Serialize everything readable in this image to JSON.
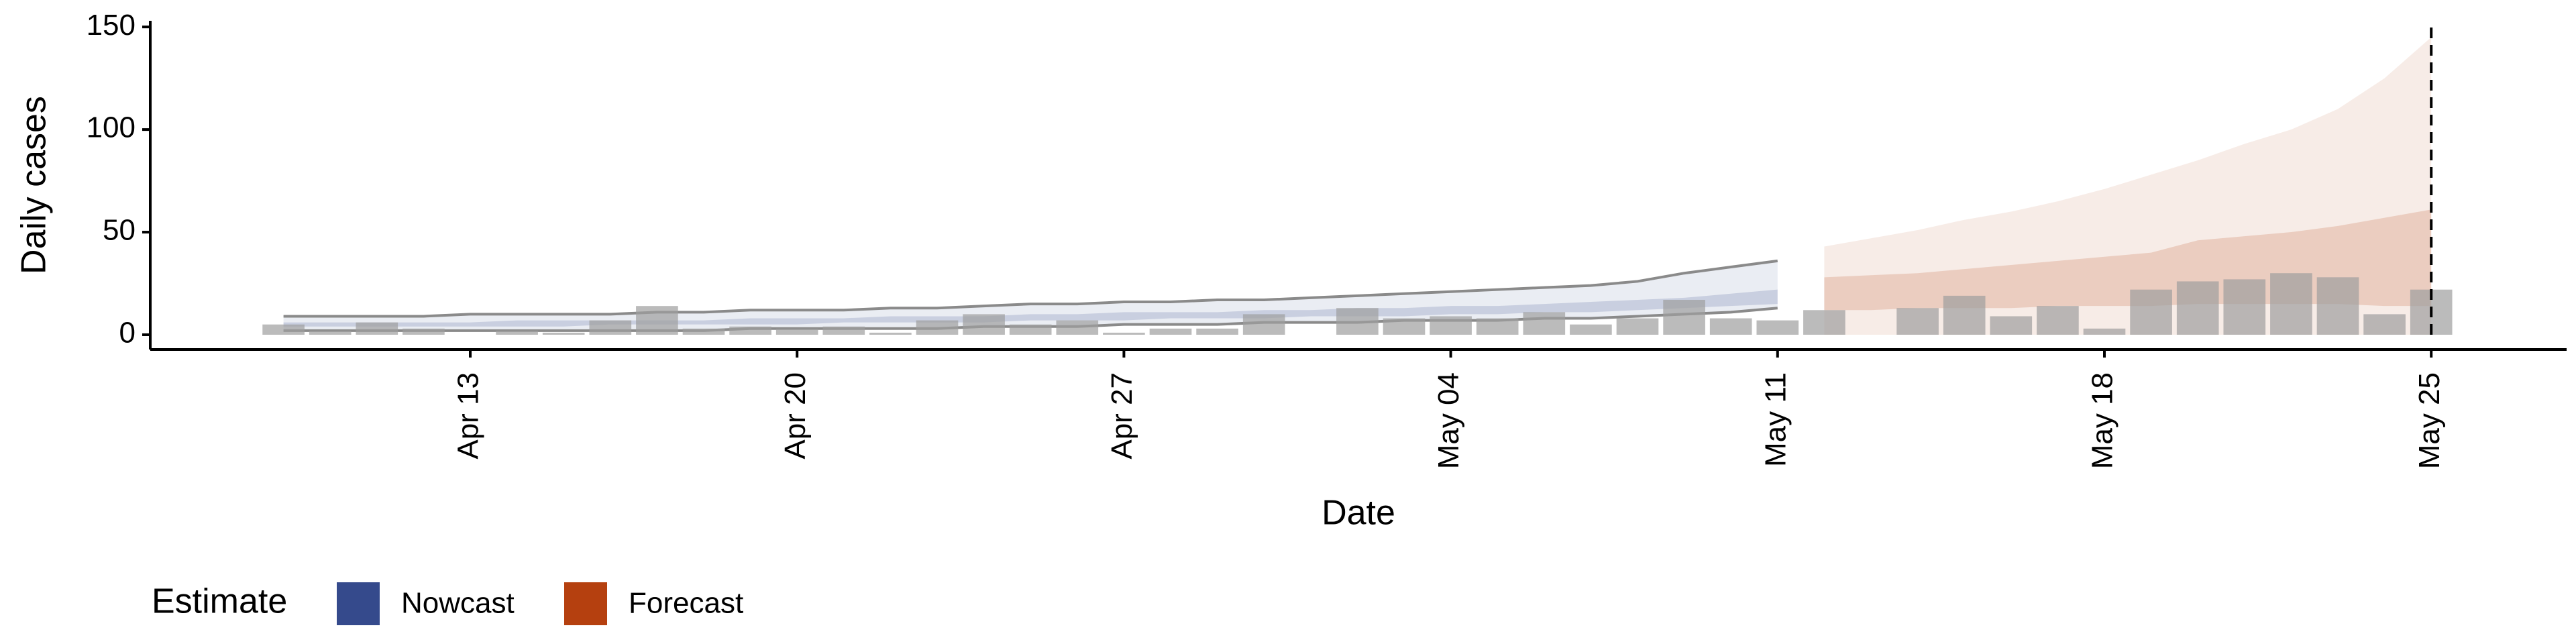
{
  "chart_data": {
    "type": "bar",
    "x_label": "Date",
    "y_label": "Daily cases",
    "categories": [
      null,
      null,
      null,
      null,
      "Apr 13",
      null,
      null,
      null,
      null,
      null,
      null,
      "Apr 20",
      null,
      null,
      null,
      null,
      null,
      null,
      "Apr 27",
      null,
      null,
      null,
      null,
      null,
      null,
      "May 04",
      null,
      null,
      null,
      null,
      null,
      null,
      "May 11",
      null,
      null,
      null,
      null,
      null,
      null,
      "May 18",
      null,
      null,
      null,
      null,
      null,
      null,
      "May 25"
    ],
    "values": [
      5,
      2,
      6,
      3,
      0,
      2,
      1,
      7,
      14,
      3,
      4,
      3,
      4,
      1,
      7,
      10,
      5,
      7,
      1,
      3,
      3,
      10,
      0,
      13,
      8,
      9,
      8,
      11,
      5,
      8,
      17,
      8,
      7,
      12,
      0,
      13,
      19,
      9,
      14,
      3,
      22,
      26,
      27,
      30,
      28,
      10,
      22
    ],
    "color": "#9e9e9e",
    "ylim": [
      -7.2,
      153
    ],
    "yticks": [
      0,
      50,
      100,
      150
    ],
    "legend_title": "Estimate",
    "estimates": [
      {
        "name": "Nowcast",
        "color": "#354a8c",
        "lower_90": [
          2,
          2,
          2,
          2,
          2,
          2,
          2,
          2,
          2,
          2,
          3,
          3,
          3,
          3,
          3,
          4,
          4,
          4,
          5,
          5,
          5,
          6,
          6,
          6,
          7,
          7,
          7,
          8,
          8,
          9,
          10,
          11,
          13,
          null,
          null,
          null,
          null,
          null,
          null,
          null,
          null,
          null,
          null,
          null,
          null,
          null,
          null
        ],
        "upper_90": [
          9,
          9,
          9,
          9,
          10,
          10,
          10,
          10,
          11,
          11,
          12,
          12,
          12,
          13,
          13,
          14,
          15,
          15,
          16,
          16,
          17,
          17,
          18,
          19,
          20,
          21,
          22,
          23,
          24,
          26,
          30,
          33,
          36,
          null,
          null,
          null,
          null,
          null,
          null,
          null,
          null,
          null,
          null,
          null,
          null,
          null,
          null
        ],
        "lower_50": [
          4,
          4,
          4,
          4,
          4,
          4,
          4,
          5,
          5,
          5,
          5,
          5,
          6,
          6,
          6,
          6,
          7,
          7,
          7,
          8,
          8,
          8,
          9,
          9,
          9,
          10,
          10,
          11,
          11,
          12,
          13,
          14,
          15,
          null,
          null,
          null,
          null,
          null,
          null,
          null,
          null,
          null,
          null,
          null,
          null,
          null,
          null
        ],
        "upper_50": [
          6,
          6,
          6,
          6,
          6,
          7,
          7,
          7,
          7,
          7,
          8,
          8,
          8,
          9,
          9,
          9,
          10,
          10,
          11,
          11,
          11,
          12,
          12,
          13,
          13,
          14,
          14,
          15,
          16,
          17,
          18,
          20,
          22,
          null,
          null,
          null,
          null,
          null,
          null,
          null,
          null,
          null,
          null,
          null,
          null,
          null,
          null
        ]
      },
      {
        "name": "Forecast",
        "color": "#b5400f",
        "lower_90": [
          null,
          null,
          null,
          null,
          null,
          null,
          null,
          null,
          null,
          null,
          null,
          null,
          null,
          null,
          null,
          null,
          null,
          null,
          null,
          null,
          null,
          null,
          null,
          null,
          null,
          null,
          null,
          null,
          null,
          null,
          null,
          null,
          null,
          0,
          0,
          0,
          0,
          0,
          0,
          0,
          0,
          0,
          0,
          0,
          0,
          0,
          0
        ],
        "upper_90": [
          null,
          null,
          null,
          null,
          null,
          null,
          null,
          null,
          null,
          null,
          null,
          null,
          null,
          null,
          null,
          null,
          null,
          null,
          null,
          null,
          null,
          null,
          null,
          null,
          null,
          null,
          null,
          null,
          null,
          null,
          null,
          null,
          null,
          43,
          47,
          51,
          56,
          60,
          65,
          71,
          78,
          85,
          93,
          100,
          110,
          125,
          145
        ],
        "lower_50": [
          null,
          null,
          null,
          null,
          null,
          null,
          null,
          null,
          null,
          null,
          null,
          null,
          null,
          null,
          null,
          null,
          null,
          null,
          null,
          null,
          null,
          null,
          null,
          null,
          null,
          null,
          null,
          null,
          null,
          null,
          null,
          null,
          null,
          12,
          12,
          13,
          13,
          13,
          14,
          14,
          14,
          15,
          15,
          15,
          15,
          14,
          14
        ],
        "upper_50": [
          null,
          null,
          null,
          null,
          null,
          null,
          null,
          null,
          null,
          null,
          null,
          null,
          null,
          null,
          null,
          null,
          null,
          null,
          null,
          null,
          null,
          null,
          null,
          null,
          null,
          null,
          null,
          null,
          null,
          null,
          null,
          null,
          null,
          28,
          29,
          30,
          32,
          34,
          36,
          38,
          40,
          46,
          48,
          50,
          53,
          57,
          61
        ]
      }
    ]
  }
}
